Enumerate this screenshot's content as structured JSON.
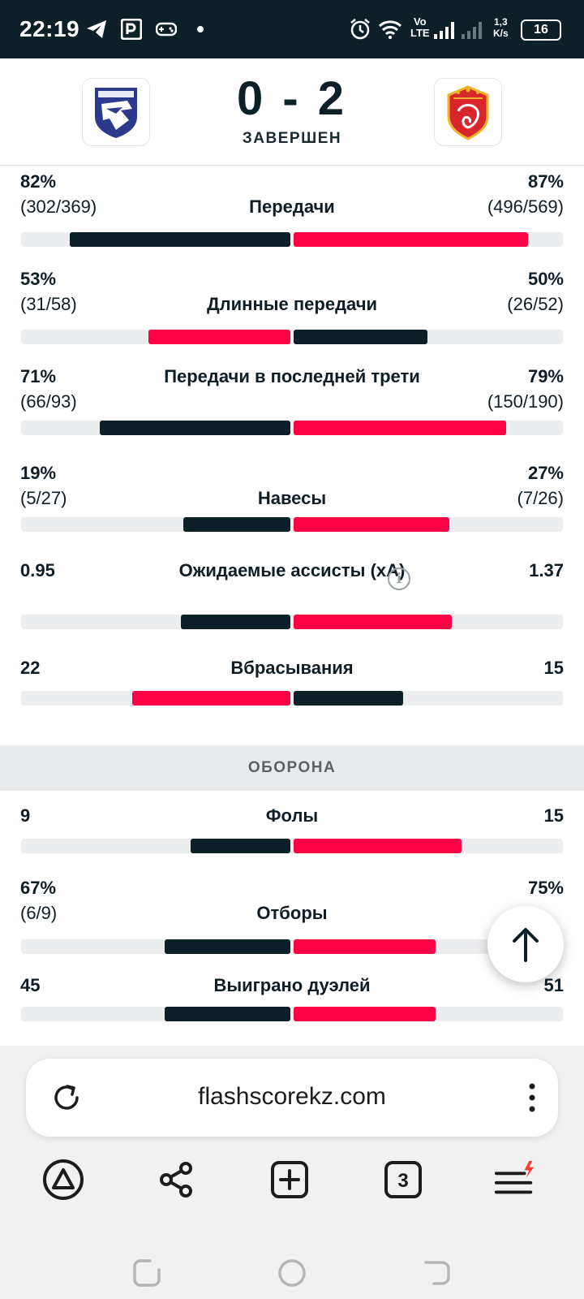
{
  "status_bar": {
    "time": "22:19",
    "network": "Vo\nLTE",
    "speed": "1,3\nK/s",
    "battery": "16",
    "icons": [
      "telegram-icon",
      "parking-icon",
      "gamepad-icon",
      "dot-icon",
      "alarm-icon",
      "wifi-icon",
      "signal-icon"
    ]
  },
  "match": {
    "score": "0 - 2",
    "status": "ЗАВЕРШЕН",
    "home_logo": "home-team-shield-logo",
    "away_logo": "away-team-shield-logo"
  },
  "colors": {
    "dark": "#0d1f27",
    "red": "#ff0046",
    "track": "#ecedee"
  },
  "stats": [
    {
      "name": "Передачи",
      "home_pct": "82%",
      "home_detail": "(302/369)",
      "away_pct": "87%",
      "away_detail": "(496/569)",
      "home_share": 0.82,
      "away_share": 0.87,
      "leader": "away"
    },
    {
      "name": "Длинные передачи",
      "home_pct": "53%",
      "home_detail": "(31/58)",
      "away_pct": "50%",
      "away_detail": "(26/52)",
      "home_share": 0.53,
      "away_share": 0.5,
      "leader": "home"
    },
    {
      "name": "Передачи в последней трети",
      "home_pct": "71%",
      "home_detail": "(66/93)",
      "away_pct": "79%",
      "away_detail": "(150/190)",
      "home_share": 0.71,
      "away_share": 0.79,
      "leader": "away"
    },
    {
      "name": "Навесы",
      "home_pct": "19%",
      "home_detail": "(5/27)",
      "away_pct": "27%",
      "away_detail": "(7/26)",
      "home_share": 0.4,
      "away_share": 0.58,
      "leader": "away"
    },
    {
      "name": "Ожидаемые ассисты (xA)",
      "home_pct": "0.95",
      "home_detail": "",
      "away_pct": "1.37",
      "away_detail": "",
      "home_share": 0.41,
      "away_share": 0.59,
      "leader": "away",
      "info": true
    },
    {
      "name": "Вбрасывания",
      "home_pct": "22",
      "home_detail": "",
      "away_pct": "15",
      "away_detail": "",
      "home_share": 0.59,
      "away_share": 0.41,
      "leader": "home"
    }
  ],
  "defense_section": "ОБОРОНА",
  "defense_stats": [
    {
      "name": "Фолы",
      "home_pct": "9",
      "home_detail": "",
      "away_pct": "15",
      "away_detail": "",
      "home_share": 0.375,
      "away_share": 0.625,
      "leader": "away"
    },
    {
      "name": "Отборы",
      "home_pct": "67%",
      "home_detail": "(6/9)",
      "away_pct": "75%",
      "away_detail": "",
      "home_share": 0.47,
      "away_share": 0.53,
      "leader": "away"
    },
    {
      "name": "Выиграно дуэлей",
      "home_pct": "45",
      "home_detail": "",
      "away_pct": "51",
      "away_detail": "",
      "home_share": 0.47,
      "away_share": 0.53,
      "leader": "away"
    }
  ],
  "browser": {
    "url": "flashscorekz.com",
    "tab_count": "3",
    "nav_icons": [
      "alice-icon",
      "share-icon",
      "new-tab-icon",
      "tabs-icon",
      "menu-icon"
    ]
  }
}
